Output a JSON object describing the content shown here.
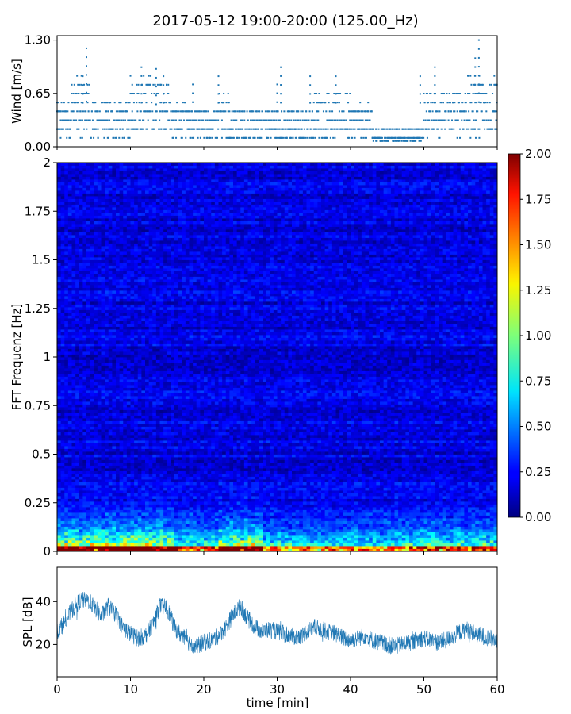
{
  "figure": {
    "title": "2017-05-12 19:00-20:00 (125.00_Hz)"
  },
  "chart_data": [
    {
      "type": "scatter",
      "ylabel": "Wind [m/s]",
      "xlim": [
        0,
        60
      ],
      "ylim": [
        0,
        1.3
      ],
      "yticks": [
        "0.00",
        "0.65",
        "1.30"
      ],
      "xticks": [
        0,
        10,
        20,
        30,
        40,
        50,
        60
      ],
      "color": "#1f77b4",
      "resolution": 0.108,
      "segments": [
        {
          "x": [
            0,
            2
          ],
          "base": 0.32,
          "var": 0.22
        },
        {
          "x": [
            2,
            4.5
          ],
          "base": 0.48,
          "var": 0.35
        },
        {
          "x": [
            4.5,
            10
          ],
          "base": 0.32,
          "var": 0.22
        },
        {
          "x": [
            10,
            15.5
          ],
          "base": 0.5,
          "var": 0.34
        },
        {
          "x": [
            15.5,
            18
          ],
          "base": 0.3,
          "var": 0.2
        },
        {
          "x": [
            18,
            22
          ],
          "base": 0.28,
          "var": 0.2
        },
        {
          "x": [
            22,
            23.5
          ],
          "base": 0.42,
          "var": 0.3
        },
        {
          "x": [
            23.5,
            30
          ],
          "base": 0.28,
          "var": 0.2
        },
        {
          "x": [
            30,
            35
          ],
          "base": 0.26,
          "var": 0.2
        },
        {
          "x": [
            35,
            40
          ],
          "base": 0.38,
          "var": 0.26
        },
        {
          "x": [
            40,
            43
          ],
          "base": 0.3,
          "var": 0.2
        },
        {
          "x": [
            43,
            50
          ],
          "base": 0.12,
          "var": 0.1
        },
        {
          "x": [
            50,
            56
          ],
          "base": 0.42,
          "var": 0.28
        },
        {
          "x": [
            56,
            60
          ],
          "base": 0.5,
          "var": 0.36
        }
      ],
      "peaks": [
        {
          "x": 4.0,
          "y": 1.2
        },
        {
          "x": 3.5,
          "y": 0.86
        },
        {
          "x": 11.5,
          "y": 0.97
        },
        {
          "x": 13.5,
          "y": 0.95
        },
        {
          "x": 14.5,
          "y": 0.86
        },
        {
          "x": 18.5,
          "y": 0.76
        },
        {
          "x": 22.0,
          "y": 0.86
        },
        {
          "x": 30.5,
          "y": 0.97
        },
        {
          "x": 30.0,
          "y": 0.76
        },
        {
          "x": 34.5,
          "y": 0.86
        },
        {
          "x": 38.0,
          "y": 0.86
        },
        {
          "x": 49.5,
          "y": 0.86
        },
        {
          "x": 51.5,
          "y": 0.97
        },
        {
          "x": 57.5,
          "y": 1.3
        },
        {
          "x": 57.0,
          "y": 1.08
        }
      ]
    },
    {
      "type": "heatmap",
      "ylabel": "FFT Frequenz [Hz]",
      "xlim": [
        0,
        60
      ],
      "ylim": [
        0,
        2
      ],
      "yticks": [
        "0",
        "0.25",
        "0.5",
        "0.75",
        "1",
        "1.25",
        "1.5",
        "1.75",
        "2"
      ],
      "colorbar": {
        "min": 0,
        "max": 2,
        "colormap": "jet",
        "ticks": [
          "0.00",
          "0.25",
          "0.50",
          "0.75",
          "1.00",
          "1.25",
          "1.50",
          "1.75",
          "2.00"
        ]
      },
      "background_level": 0.2,
      "low_frequency_activity": [
        {
          "x": [
            0,
            10
          ],
          "level": 1.3
        },
        {
          "x": [
            10,
            16
          ],
          "level": 1.4
        },
        {
          "x": [
            16,
            22
          ],
          "level": 0.9
        },
        {
          "x": [
            22,
            28
          ],
          "level": 1.3
        },
        {
          "x": [
            28,
            45
          ],
          "level": 0.8
        },
        {
          "x": [
            45,
            60
          ],
          "level": 0.9
        }
      ]
    },
    {
      "type": "line",
      "ylabel": "SPL [dB]",
      "xlabel": "time [min]",
      "xlim": [
        0,
        60
      ],
      "ylim": [
        5,
        56
      ],
      "yticks": [
        "20",
        "40"
      ],
      "xticks": [
        "0",
        "10",
        "20",
        "30",
        "40",
        "50",
        "60"
      ],
      "color": "#1f77b4",
      "x": [
        0,
        1,
        2,
        3,
        4,
        5,
        6,
        7,
        8,
        9,
        10,
        11,
        12,
        13,
        14,
        15,
        16,
        17,
        18,
        19,
        20,
        21,
        22,
        23,
        24,
        25,
        26,
        27,
        28,
        29,
        30,
        31,
        32,
        33,
        34,
        35,
        36,
        37,
        38,
        39,
        40,
        41,
        42,
        43,
        44,
        45,
        46,
        47,
        48,
        49,
        50,
        51,
        52,
        53,
        54,
        55,
        56,
        57,
        58,
        59,
        60
      ],
      "y": [
        26,
        30,
        36,
        40,
        41,
        38,
        33,
        38,
        34,
        28,
        25,
        23,
        24,
        29,
        38,
        37,
        28,
        24,
        21,
        19,
        21,
        22,
        24,
        28,
        34,
        38,
        32,
        28,
        26,
        27,
        26,
        25,
        24,
        23,
        26,
        28,
        27,
        26,
        25,
        23,
        22,
        23,
        24,
        22,
        21,
        20,
        19,
        20,
        21,
        22,
        23,
        22,
        21,
        22,
        24,
        26,
        27,
        25,
        24,
        23,
        22
      ],
      "noise": 4
    }
  ]
}
